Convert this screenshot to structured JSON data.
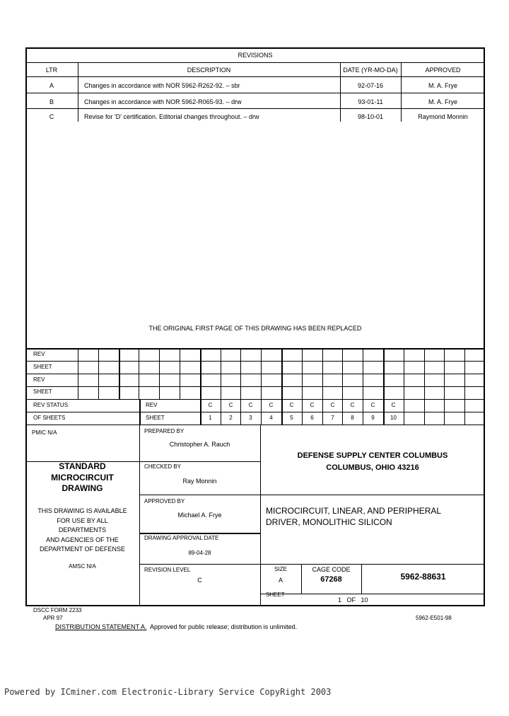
{
  "revisions": {
    "title": "REVISIONS",
    "headers": [
      "LTR",
      "DESCRIPTION",
      "DATE (YR-MO-DA)",
      "APPROVED"
    ],
    "rows": [
      {
        "ltr": "A",
        "description": "Changes in accordance with NOR 5962-R262-92. – sbr",
        "date": "92-07-16",
        "approved": "M. A. Frye"
      },
      {
        "ltr": "B",
        "description": "Changes in accordance with NOR 5962-R065-93. – drw",
        "date": "93-01-11",
        "approved": "M. A. Frye"
      },
      {
        "ltr": "C",
        "description": "Revise for 'D' certification.  Editorial changes throughout. – drw",
        "date": "98-10-01",
        "approved": "Raymond Monnin"
      }
    ]
  },
  "replaced_note": "THE ORIGINAL FIRST PAGE OF THIS DRAWING HAS BEEN REPLACED",
  "grid": {
    "rev_label": "REV",
    "sheet_label": "SHEET",
    "status_label_1": "REV STATUS",
    "status_label_2": "OF SHEETS",
    "revs": [
      "C",
      "C",
      "C",
      "C",
      "C",
      "C",
      "C",
      "C",
      "C",
      "C"
    ],
    "sheets": [
      "1",
      "2",
      "3",
      "4",
      "5",
      "6",
      "7",
      "8",
      "9",
      "10"
    ]
  },
  "title_block": {
    "pmic": "PMIC N/A",
    "standard": [
      "STANDARD",
      "MICROCIRCUIT",
      "DRAWING"
    ],
    "availability": [
      "THIS DRAWING IS AVAILABLE",
      "FOR USE BY ALL",
      "DEPARTMENTS",
      "AND AGENCIES OF THE",
      "DEPARTMENT OF DEFENSE"
    ],
    "amsc": "AMSC N/A",
    "prepared_label": "PREPARED BY",
    "prepared": "Christopher A. Rauch",
    "checked_label": "CHECKED BY",
    "checked": "Ray Monnin",
    "approved_label": "APPROVED BY",
    "approved": "Michael A. Frye",
    "approval_date_label": "DRAWING APPROVAL DATE",
    "approval_date": "89-04-28",
    "revision_level_label": "REVISION LEVEL",
    "revision_level": "C",
    "agency": [
      "DEFENSE SUPPLY CENTER COLUMBUS",
      "COLUMBUS, OHIO  43216"
    ],
    "title": [
      "MICROCIRCUIT, LINEAR, AND PERIPHERAL",
      "DRIVER, MONOLITHIC SILICON"
    ],
    "size_label": "SIZE",
    "size": "A",
    "cage_label": "CAGE CODE",
    "cage": "67268",
    "dwg_no": "5962-88631",
    "sheet_label": "SHEET",
    "sheet": "1   OF   10"
  },
  "footer": {
    "form": "DSCC FORM 2233",
    "date": "APR 97",
    "code": "5962-E501-98",
    "dist_label": "DISTRIBUTION STATEMENT A.",
    "dist_text": "  Approved for public release; distribution is unlimited."
  },
  "watermark": "Powered by ICminer.com Electronic-Library Service CopyRight 2003"
}
